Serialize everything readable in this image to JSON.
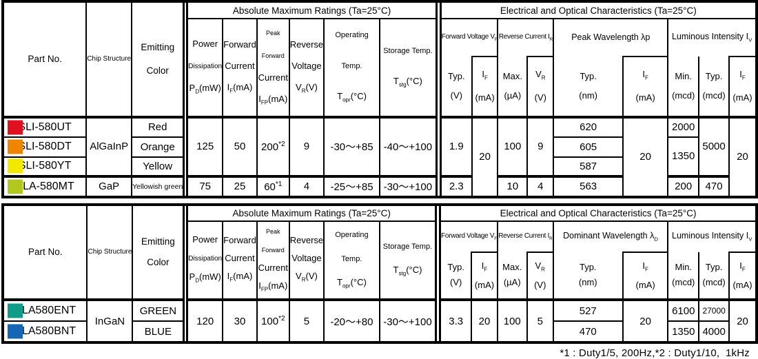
{
  "footnote": "*1 : Duty1/5, 200Hz,*2 : Duty1/10,  1kHz",
  "t1": {
    "part_no": "Part No.",
    "chip_structure": "Chip Structure",
    "emitting_color": "Emitting Color",
    "amr_title": "Absolute Maximum Ratings (Ta=25°C)",
    "eoc_title": "Electrical and Optical Characteristics (Ta=25°C)",
    "amr_cols": {
      "pd": "Power<br><span class=\"sm\">Dissipation</span><br>P<sub>D</sub>(mW)",
      "if": "Forward<br>Current<br>I<sub>F</sub>(mA)",
      "ifp": "<span class=\"xs\">Peak Forward</span><br>Current<br>I<sub>FP</sub>(mA)",
      "vr": "Reverse<br>Voltage<br>V<sub>R</sub>(V)",
      "topr": "<span class=\"sm2\">Operating Temp.</span><br>T<sub>opr</sub>(°C)",
      "tstg": "<span class=\"sm2\">Storage Temp.</span><br>T<sub>stg</sub>(°C)"
    },
    "groups": {
      "vf": "Forward Voltage V<sub>F</sub>",
      "ir": "Reverse Current I<sub>R</sub>",
      "wl": "Peak Wavelength λp",
      "lv": "Luminous Intensity I<sub>V</sub>"
    },
    "sub": {
      "vf_typ": "Typ.<br>(V)",
      "vf_if": "I<sub>F</sub><br>(mA)",
      "ir_max": "Max.<br>(µA)",
      "ir_vr": "V<sub>R</sub><br>(V)",
      "wl_typ": "Typ.<br>(nm)",
      "wl_if": "I<sub>F</sub><br>(mA)",
      "lv_min": "Min.<br>(mcd)",
      "lv_typ": "Typ.<br>(mcd)",
      "lv_if": "I<sub>F</sub><br>(mA)"
    },
    "rows": [
      {
        "part": "SLI-580UT",
        "swatch": "#e01020",
        "color": "Red",
        "wl": "620",
        "lv_min": "2000"
      },
      {
        "part": "SLI-580DT",
        "swatch": "#ef8500",
        "color": "Orange",
        "wl": "605",
        "lv_min": "1350"
      },
      {
        "part": "SLI-580YT",
        "swatch": "#f2e900",
        "color": "Yellow",
        "wl": "587"
      },
      {
        "part": "SLA-580MT",
        "swatch": "#b2c81e",
        "color": "Yellowish green",
        "chip": "GaP",
        "pd": "75",
        "if": "25",
        "ifp": "60<sup>*1</sup>",
        "vr": "4",
        "topr": "-25～+85",
        "tstg": "-30～+100",
        "vf_typ": "2.3",
        "ir_max": "10",
        "ir_vr": "4",
        "wl": "563",
        "lv_min": "200",
        "lv_typ": "470"
      }
    ],
    "merged": {
      "chip": "AlGaInP",
      "pd": "125",
      "if": "50",
      "ifp": "200<sup>*2</sup>",
      "vr": "9",
      "topr": "-30～+85",
      "tstg": "-40～+100",
      "vf_typ": "1.9",
      "vf_if": "20",
      "ir_max": "100",
      "ir_vr": "9",
      "wl_if": "20",
      "lv_typ": "5000",
      "lv_if": "20"
    }
  },
  "t2": {
    "part_no": "Part No.",
    "chip_structure": "Chip Structure",
    "emitting_color": "Emitting Color",
    "amr_title": "Absolute Maximum Ratings (Ta=25°C)",
    "eoc_title": "Electrical and Optical Characteristics (Ta=25°C)",
    "amr_cols": {
      "pd": "Power<br><span class=\"sm\">Dissipation</span><br>P<sub>D</sub>(mW)",
      "if": "Forward<br>Current<br>I<sub>F</sub>(mA)",
      "ifp": "<span class=\"xs\">Peak Forward</span><br>Current<br>I<sub>FP</sub>(mA)",
      "vr": "Reverse<br>Voltage<br>V<sub>R</sub>(V)",
      "topr": "<span class=\"sm2\">Operating Temp.</span><br>T<sub>opr</sub>(°C)",
      "tstg": "<span class=\"sm2\">Storage Temp.</span><br>T<sub>stg</sub>(°C)"
    },
    "groups": {
      "vf": "Forward Voltage V<sub>F</sub>",
      "ir": "Reverse Current I<sub>R</sub>",
      "wl": "Dominant Wavelength λ<sub>D</sub>",
      "lv": "Luminous Intensity I<sub>V</sub>"
    },
    "sub": {
      "vf_typ": "Typ.<br>(V)",
      "vf_if": "I<sub>F</sub><br>(mA)",
      "ir_max": "Max.<br>(µA)",
      "ir_vr": "V<sub>R</sub><br>(V)",
      "wl_typ": "Typ.<br>(nm)",
      "wl_if": "I<sub>F</sub><br>(mA)",
      "lv_min": "Min.<br>(mcd)",
      "lv_typ": "Typ.<br>(mcd)",
      "lv_if": "I<sub>F</sub><br>(mA)"
    },
    "rows": [
      {
        "part": "SLA580ENT",
        "swatch": "#0f9c88",
        "color": "GREEN",
        "wl": "527",
        "lv_min": "6100",
        "lv_typ": "27000"
      },
      {
        "part": "SLA580BNT",
        "swatch": "#1566b4",
        "color": "BLUE",
        "wl": "470",
        "lv_min": "1350",
        "lv_typ": "4000"
      }
    ],
    "merged": {
      "chip": "InGaN",
      "pd": "120",
      "if": "30",
      "ifp": "100<sup>*2</sup>",
      "vr": "5",
      "topr": "-20～+80",
      "tstg": "-30～+100",
      "vf_typ": "3.3",
      "vf_if": "20",
      "ir_max": "100",
      "ir_vr": "5",
      "wl_if": "20",
      "lv_if": "20"
    }
  }
}
